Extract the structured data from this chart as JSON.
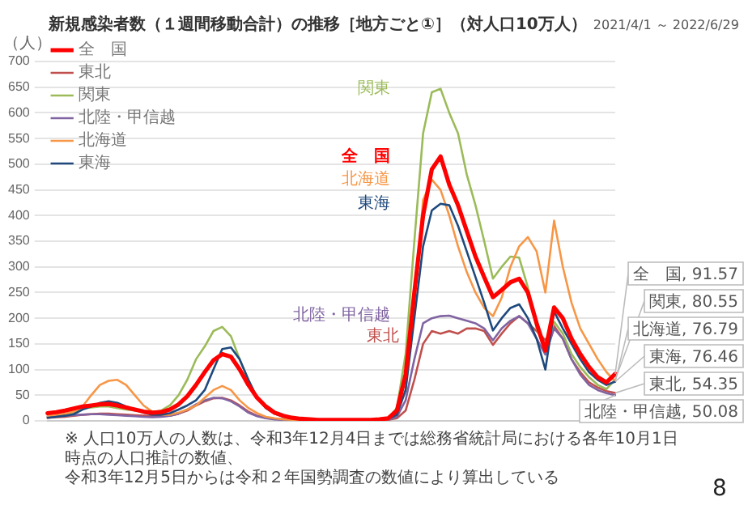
{
  "chart_data": {
    "type": "line",
    "title": "新規感染者数（１週間移動合計）の推移［地方ごと①］（対人口10万人）",
    "subtitle": "2021/4/1 ～ 2022/6/29",
    "ylabel": "（人）",
    "categories": [
      null,
      null,
      null,
      null,
      null,
      null,
      null,
      null,
      null,
      null,
      null,
      null,
      null,
      null,
      null,
      null,
      null,
      null,
      null,
      null,
      null,
      null,
      null,
      null,
      null,
      null,
      null,
      null,
      null,
      null,
      null,
      null,
      null,
      null,
      null,
      null,
      null,
      null,
      null,
      null,
      null,
      null,
      null,
      null,
      null,
      null,
      null,
      null,
      null,
      null,
      null,
      null,
      null,
      null,
      null,
      null,
      null,
      null,
      null,
      null,
      null,
      null,
      null,
      null,
      null,
      null
    ],
    "ylim": [
      0,
      700
    ],
    "yticks": [
      0,
      50,
      100,
      150,
      200,
      250,
      300,
      350,
      400,
      450,
      500,
      550,
      600,
      650,
      700
    ],
    "grid": "y",
    "legend": "top left",
    "marker": "none",
    "line_style": "solid",
    "series": [
      {
        "name": "全　国",
        "color": "#ff0000",
        "values": [
          15,
          17,
          20,
          24,
          28,
          30,
          32,
          33,
          30,
          26,
          22,
          18,
          16,
          17,
          22,
          32,
          48,
          70,
          95,
          118,
          130,
          125,
          100,
          70,
          45,
          28,
          16,
          10,
          6,
          4,
          3,
          2,
          2,
          2,
          2,
          2,
          2,
          2,
          3,
          5,
          20,
          90,
          250,
          400,
          490,
          515,
          460,
          420,
          370,
          320,
          280,
          241,
          255,
          270,
          277,
          250,
          190,
          137,
          221,
          200,
          160,
          130,
          105,
          85,
          75,
          91.57
        ],
        "value_labels": [
          null,
          null,
          null,
          null,
          null,
          null,
          null,
          null,
          null,
          null,
          null,
          null,
          null,
          null,
          null,
          null,
          null,
          null,
          null,
          null,
          null,
          null,
          null,
          null,
          null,
          null,
          null,
          null,
          null,
          null,
          null,
          null,
          null,
          null,
          null,
          null,
          null,
          null,
          null,
          null,
          null,
          null,
          null,
          null,
          null,
          null,
          null,
          null,
          null,
          null,
          null,
          null,
          null,
          null,
          null,
          null,
          null,
          null,
          null,
          null,
          null,
          null,
          null,
          null,
          null,
          "全　国, 91.57"
        ]
      },
      {
        "name": "東北",
        "color": "#c0504d",
        "values": [
          6,
          7,
          8,
          10,
          12,
          13,
          14,
          14,
          13,
          12,
          11,
          10,
          9,
          9,
          10,
          14,
          20,
          30,
          38,
          44,
          45,
          40,
          30,
          18,
          10,
          6,
          4,
          3,
          2,
          1,
          1,
          1,
          1,
          1,
          1,
          1,
          1,
          1,
          2,
          2,
          5,
          20,
          80,
          150,
          175,
          170,
          175,
          170,
          180,
          180,
          175,
          148,
          170,
          190,
          204,
          190,
          175,
          157,
          185,
          160,
          120,
          95,
          75,
          65,
          58,
          54.35
        ],
        "value_labels": [
          null,
          null,
          null,
          null,
          null,
          null,
          null,
          null,
          null,
          null,
          null,
          null,
          null,
          null,
          null,
          null,
          null,
          null,
          null,
          null,
          null,
          null,
          null,
          null,
          null,
          null,
          null,
          null,
          null,
          null,
          null,
          null,
          null,
          null,
          null,
          null,
          null,
          null,
          null,
          null,
          null,
          null,
          null,
          null,
          null,
          null,
          null,
          null,
          null,
          null,
          null,
          null,
          null,
          null,
          null,
          null,
          null,
          null,
          null,
          null,
          null,
          null,
          null,
          null,
          null,
          "東北, 54.35"
        ]
      },
      {
        "name": "関東",
        "color": "#9bbb59",
        "values": [
          8,
          10,
          12,
          15,
          24,
          26,
          28,
          28,
          25,
          22,
          20,
          18,
          17,
          20,
          30,
          50,
          80,
          120,
          145,
          175,
          183,
          165,
          120,
          80,
          45,
          25,
          14,
          9,
          6,
          4,
          3,
          2,
          2,
          2,
          2,
          2,
          2,
          2,
          3,
          5,
          25,
          130,
          350,
          560,
          640,
          647,
          600,
          560,
          480,
          420,
          350,
          277,
          300,
          320,
          318,
          260,
          180,
          137,
          193,
          170,
          130,
          105,
          85,
          70,
          62,
          80.55
        ],
        "value_labels": [
          null,
          null,
          null,
          null,
          null,
          null,
          null,
          null,
          null,
          null,
          null,
          null,
          null,
          null,
          null,
          null,
          null,
          null,
          null,
          null,
          null,
          null,
          null,
          null,
          null,
          null,
          null,
          null,
          null,
          null,
          null,
          null,
          null,
          null,
          null,
          null,
          null,
          null,
          null,
          null,
          null,
          null,
          null,
          null,
          null,
          null,
          null,
          null,
          null,
          null,
          null,
          null,
          null,
          null,
          null,
          null,
          null,
          null,
          null,
          null,
          null,
          null,
          null,
          null,
          null,
          "関東, 80.55"
        ]
      },
      {
        "name": "北陸・甲信越",
        "color": "#8064a2",
        "values": [
          8,
          9,
          10,
          11,
          12,
          13,
          13,
          12,
          11,
          10,
          9,
          8,
          7,
          8,
          10,
          14,
          22,
          32,
          40,
          45,
          44,
          38,
          28,
          16,
          9,
          5,
          3,
          2,
          2,
          1,
          1,
          1,
          1,
          1,
          1,
          1,
          1,
          1,
          2,
          2,
          8,
          40,
          120,
          190,
          200,
          204,
          205,
          200,
          195,
          190,
          180,
          157,
          180,
          195,
          204,
          190,
          160,
          129,
          180,
          160,
          120,
          90,
          70,
          60,
          54,
          50.08
        ],
        "value_labels": [
          null,
          null,
          null,
          null,
          null,
          null,
          null,
          null,
          null,
          null,
          null,
          null,
          null,
          null,
          null,
          null,
          null,
          null,
          null,
          null,
          null,
          null,
          null,
          null,
          null,
          null,
          null,
          null,
          null,
          null,
          null,
          null,
          null,
          null,
          null,
          null,
          null,
          null,
          null,
          null,
          null,
          null,
          null,
          null,
          null,
          null,
          null,
          null,
          null,
          null,
          null,
          null,
          null,
          null,
          null,
          null,
          null,
          null,
          null,
          null,
          null,
          null,
          null,
          null,
          null,
          "北陸・甲信越, 50.08"
        ]
      },
      {
        "name": "北海道",
        "color": "#f79646",
        "values": [
          10,
          12,
          14,
          18,
          28,
          50,
          70,
          78,
          80,
          70,
          50,
          30,
          18,
          12,
          12,
          16,
          22,
          30,
          45,
          60,
          68,
          60,
          40,
          25,
          15,
          8,
          5,
          3,
          2,
          2,
          2,
          2,
          2,
          2,
          2,
          2,
          2,
          2,
          2,
          3,
          15,
          60,
          230,
          430,
          470,
          450,
          400,
          340,
          290,
          250,
          220,
          204,
          240,
          300,
          340,
          358,
          330,
          250,
          390,
          300,
          230,
          180,
          150,
          120,
          95,
          76.79
        ],
        "value_labels": [
          null,
          null,
          null,
          null,
          null,
          null,
          null,
          null,
          null,
          null,
          null,
          null,
          null,
          null,
          null,
          null,
          null,
          null,
          null,
          null,
          null,
          null,
          null,
          null,
          null,
          null,
          null,
          null,
          null,
          null,
          null,
          null,
          null,
          null,
          null,
          null,
          null,
          null,
          null,
          null,
          null,
          null,
          null,
          null,
          null,
          null,
          null,
          null,
          null,
          null,
          null,
          null,
          null,
          null,
          null,
          null,
          null,
          null,
          null,
          null,
          null,
          null,
          null,
          null,
          null,
          "北海道, 76.79"
        ]
      },
      {
        "name": "東海",
        "color": "#1f497d",
        "values": [
          6,
          8,
          10,
          13,
          22,
          28,
          35,
          38,
          35,
          28,
          22,
          16,
          12,
          12,
          15,
          22,
          30,
          40,
          60,
          100,
          140,
          143,
          120,
          80,
          45,
          25,
          14,
          8,
          5,
          3,
          2,
          2,
          2,
          2,
          2,
          2,
          2,
          2,
          3,
          4,
          12,
          60,
          200,
          340,
          410,
          423,
          420,
          380,
          330,
          280,
          230,
          176,
          200,
          220,
          227,
          200,
          160,
          100,
          213,
          180,
          150,
          120,
          95,
          80,
          70,
          76.46
        ],
        "value_labels": [
          null,
          null,
          null,
          null,
          null,
          null,
          null,
          null,
          null,
          null,
          null,
          null,
          null,
          null,
          null,
          null,
          null,
          null,
          null,
          null,
          null,
          null,
          null,
          null,
          null,
          null,
          null,
          null,
          null,
          null,
          null,
          null,
          null,
          null,
          null,
          null,
          null,
          null,
          null,
          null,
          null,
          null,
          null,
          null,
          null,
          null,
          null,
          null,
          null,
          null,
          null,
          null,
          null,
          null,
          null,
          null,
          null,
          null,
          null,
          null,
          null,
          null,
          null,
          null,
          null,
          "東海, 76.46"
        ]
      }
    ],
    "annotations": [
      "※ 人口10万人の人数は、令和3年12月4日までは総務省統計局における各年10月1日時点の人口推計の数値、",
      "令和3年12月5日からは令和２年国勢調査の数値により算出している",
      "8"
    ]
  }
}
